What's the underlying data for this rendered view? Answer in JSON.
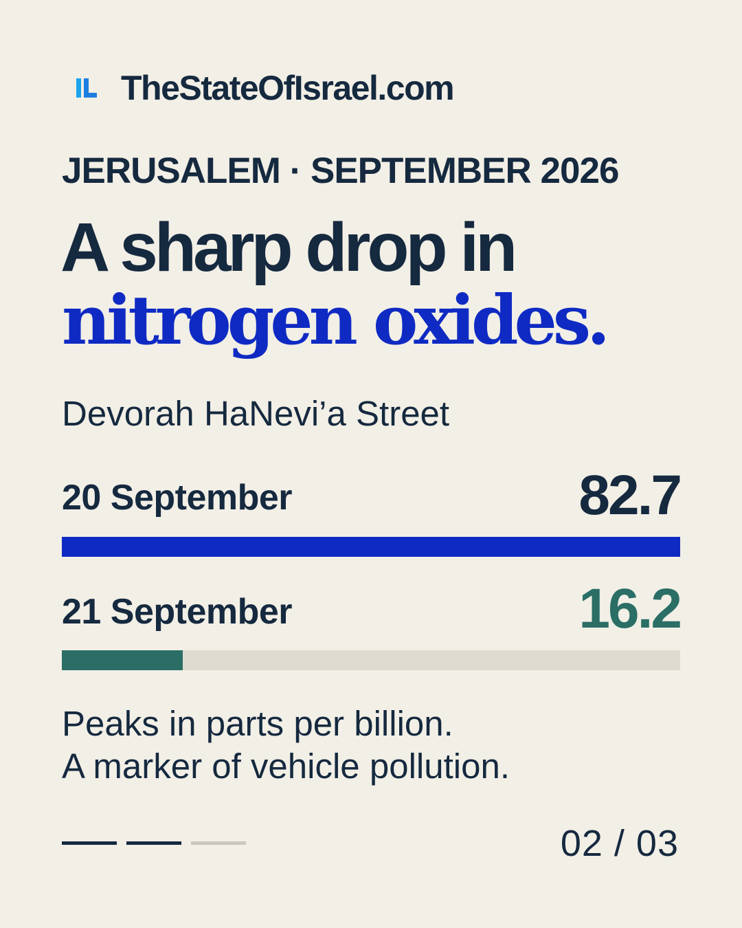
{
  "brand": {
    "logo_text": "IL",
    "name": "TheStateOfIsrael.com"
  },
  "kicker": "JERUSALEM · SEPTEMBER 2026",
  "headline": {
    "line1": "A sharp drop in",
    "line2": "nitrogen oxides."
  },
  "location": "Devorah HaNevi’a Street",
  "scale_max": 82.7,
  "readings": [
    {
      "date": "20 September",
      "value": "82.7",
      "amount": 82.7,
      "color": "#0f2ac3"
    },
    {
      "date": "21 September",
      "value": "16.2",
      "amount": 16.2,
      "color": "#2a6e66"
    }
  ],
  "note": {
    "line1": "Peaks in parts per billion.",
    "line2": "A marker of vehicle pollution."
  },
  "pager": {
    "label": "02 / 03",
    "current": 2,
    "total": 3,
    "active_color": "#15293f",
    "inactive_color": "#c9c7bf"
  }
}
